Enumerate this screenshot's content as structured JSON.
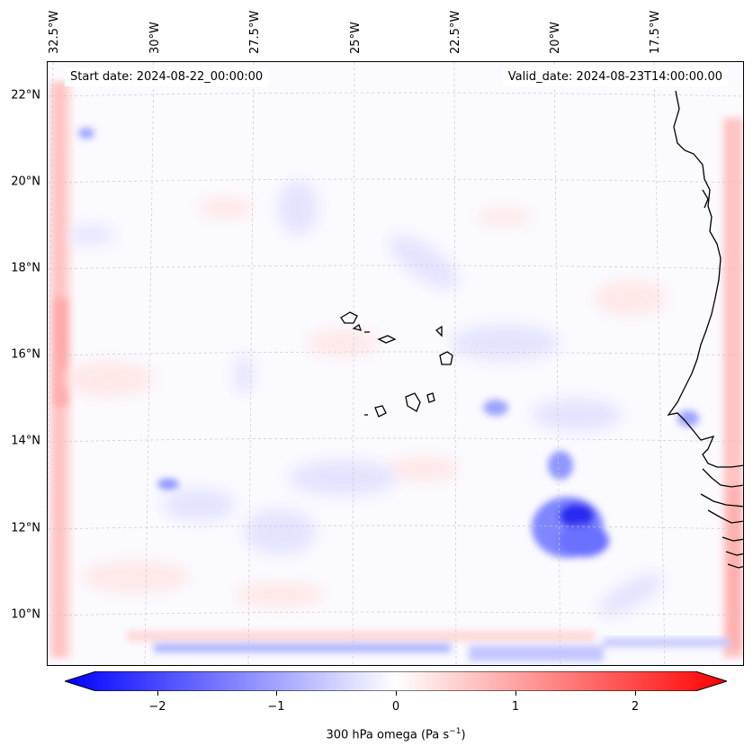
{
  "map": {
    "start_label": "Start date: 2024-08-22_00:00:00",
    "valid_label": "Valid_date: 2024-08-23T14:00:00.00",
    "lat_labels": [
      "22°N",
      "20°N",
      "18°N",
      "16°N",
      "14°N",
      "12°N",
      "10°N"
    ],
    "lon_labels": [
      "32.5°W",
      "30°W",
      "27.5°W",
      "25°W",
      "22.5°W",
      "20°W",
      "17.5°W"
    ],
    "coastline_color": "#000000",
    "gridline_color": "#c8c8c8",
    "positive_color": "#ff0000",
    "negative_color": "#0000ff"
  },
  "colorbar": {
    "ticks": [
      "−2",
      "−1",
      "0",
      "1",
      "2"
    ],
    "tick_values": [
      -2,
      -1,
      0,
      1,
      2
    ],
    "range": [
      -2.75,
      2.75
    ],
    "label_main": "300 hPa omega (Pa s",
    "label_sup": "−1",
    "label_end": ")"
  }
}
